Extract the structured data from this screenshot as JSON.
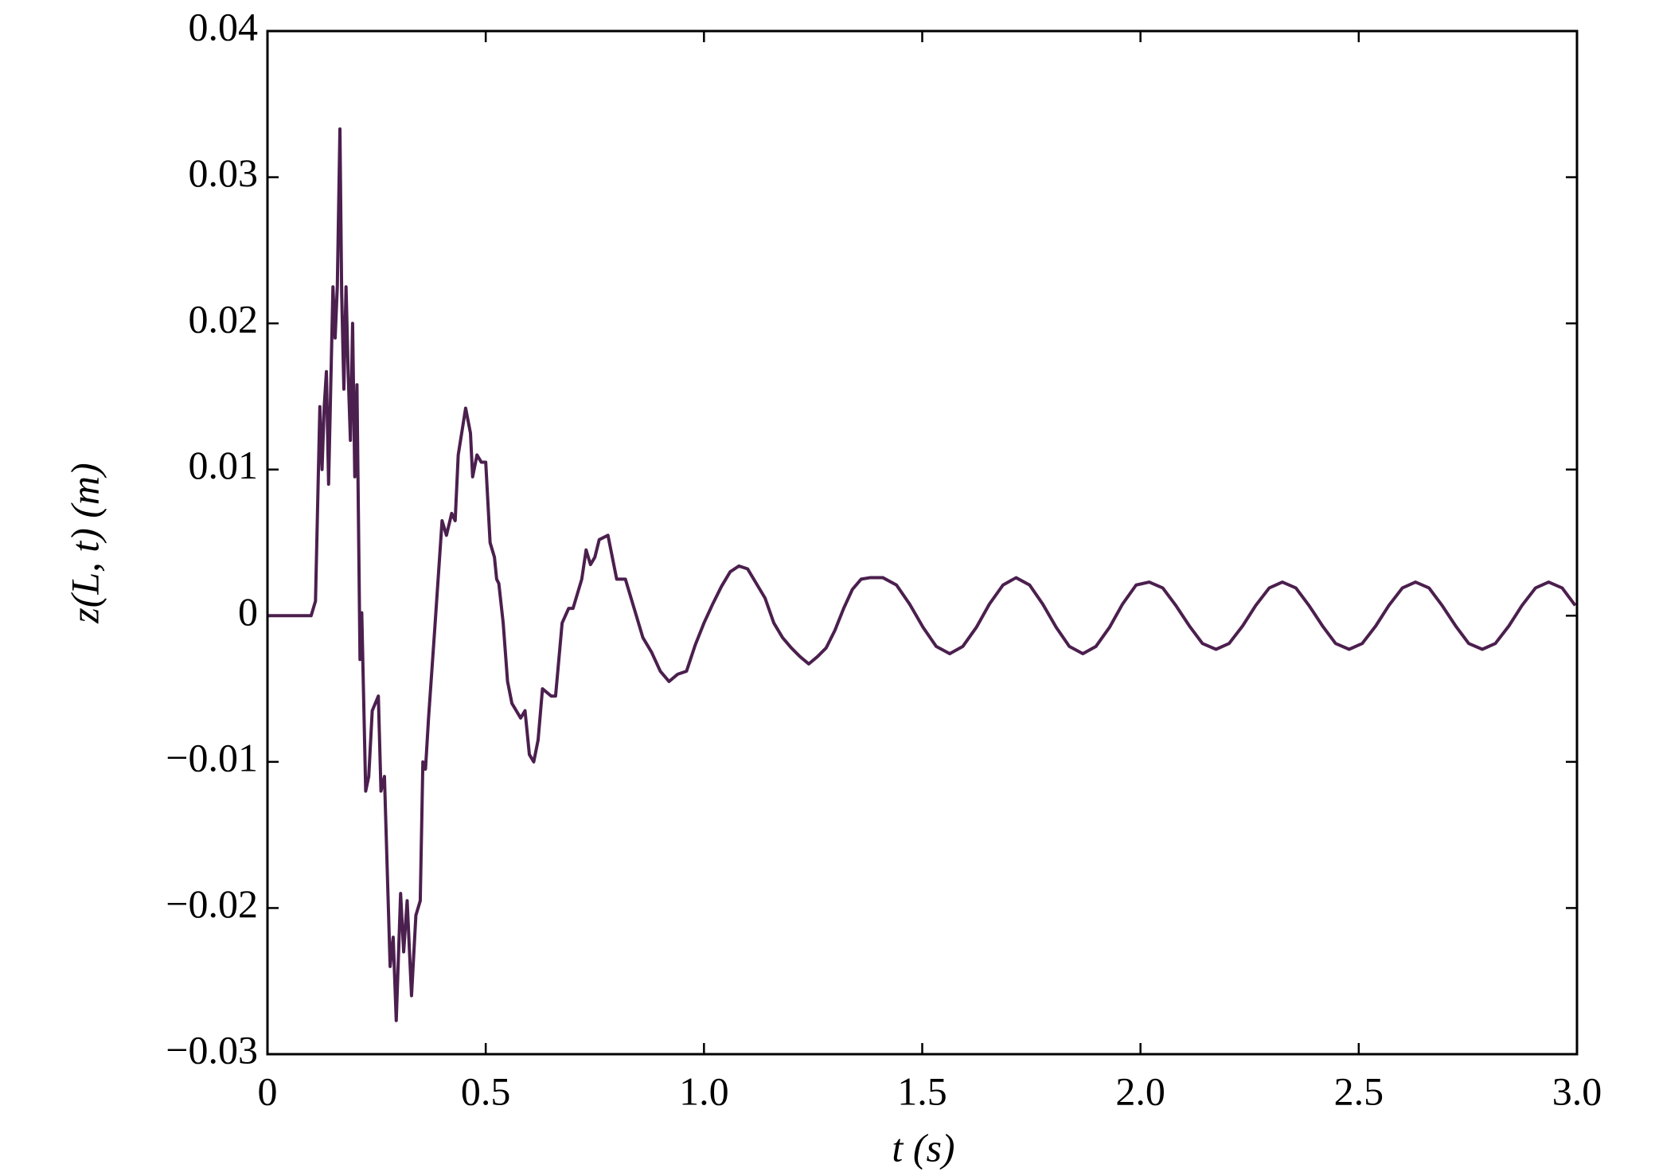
{
  "chart_data": {
    "type": "line",
    "xlabel": "t (s)",
    "ylabel": "z(L, t) (m)",
    "xlim": [
      0,
      3
    ],
    "ylim": [
      -0.03,
      0.04
    ],
    "xticks": [
      0,
      0.5,
      {
        "value": 1,
        "label": "1.0"
      },
      1.5,
      {
        "value": 2,
        "label": "2.0"
      },
      2.5,
      {
        "value": 3,
        "label": "3.0"
      }
    ],
    "yticks": [
      {
        "value": -0.03,
        "label": "−0.03"
      },
      {
        "value": -0.02,
        "label": "−0.02"
      },
      {
        "value": -0.01,
        "label": "−0.01"
      },
      0,
      0.01,
      0.02,
      0.03,
      0.04
    ],
    "x": [
      0,
      0.1,
      0.11,
      0.12,
      0.125,
      0.13,
      0.135,
      0.14,
      0.15,
      0.155,
      0.16,
      0.166,
      0.17,
      0.175,
      0.18,
      0.185,
      0.19,
      0.195,
      0.2,
      0.205,
      0.212,
      0.216,
      0.225,
      0.232,
      0.24,
      0.254,
      0.26,
      0.268,
      0.281,
      0.288,
      0.295,
      0.305,
      0.312,
      0.32,
      0.33,
      0.34,
      0.35,
      0.356,
      0.362,
      0.369,
      0.383,
      0.4,
      0.41,
      0.422,
      0.43,
      0.437,
      0.454,
      0.465,
      0.47,
      0.48,
      0.49,
      0.5,
      0.51,
      0.52,
      0.525,
      0.53,
      0.54,
      0.55,
      0.56,
      0.57,
      0.58,
      0.59,
      0.6,
      0.61,
      0.62,
      0.63,
      0.65,
      0.66,
      0.675,
      0.69,
      0.7,
      0.72,
      0.73,
      0.74,
      0.75,
      0.76,
      0.78,
      0.8,
      0.82,
      0.84,
      0.86,
      0.88,
      0.9,
      0.92,
      0.94,
      0.96,
      0.98,
      1.0,
      1.02,
      1.04,
      1.06,
      1.08,
      1.1,
      1.12,
      1.14,
      1.16,
      1.18,
      1.2,
      1.22,
      1.24,
      1.26,
      1.28,
      1.3,
      1.32,
      1.34,
      1.36,
      1.38,
      1.41,
      1.441,
      1.471,
      1.502,
      1.532,
      1.563,
      1.593,
      1.624,
      1.654,
      1.685,
      1.715,
      1.746,
      1.776,
      1.807,
      1.837,
      1.868,
      1.898,
      1.929,
      1.959,
      1.99,
      2.02,
      2.051,
      2.081,
      2.112,
      2.142,
      2.173,
      2.203,
      2.234,
      2.264,
      2.295,
      2.325,
      2.356,
      2.386,
      2.417,
      2.447,
      2.478,
      2.508,
      2.539,
      2.569,
      2.6,
      2.63,
      2.661,
      2.691,
      2.722,
      2.752,
      2.783,
      2.813,
      2.844,
      2.874,
      2.905,
      2.935,
      2.966,
      2.996
    ],
    "series": [
      {
        "color": "#4b1f4e",
        "values": [
          0,
          0,
          0.001,
          0.0143,
          0.01,
          0.0143,
          0.0167,
          0.009,
          0.0225,
          0.019,
          0.0225,
          0.0333,
          0.022,
          0.0155,
          0.0225,
          0.0165,
          0.012,
          0.02,
          0.0095,
          0.0158,
          -0.003,
          0.0002,
          -0.012,
          -0.011,
          -0.0065,
          -0.0055,
          -0.012,
          -0.011,
          -0.024,
          -0.022,
          -0.0277,
          -0.019,
          -0.023,
          -0.0195,
          -0.026,
          -0.0205,
          -0.0195,
          -0.01,
          -0.0105,
          -0.007,
          -0.001,
          0.0065,
          0.0055,
          0.007,
          0.0065,
          0.011,
          0.0142,
          0.0125,
          0.0095,
          0.011,
          0.0105,
          0.0105,
          0.005,
          0.004,
          0.0025,
          0.0022,
          -0.0005,
          -0.0045,
          -0.006,
          -0.0065,
          -0.007,
          -0.0065,
          -0.0095,
          -0.01,
          -0.0085,
          -0.005,
          -0.0055,
          -0.0055,
          -0.0005,
          0.0005,
          0.0005,
          0.0025,
          0.0045,
          0.0035,
          0.004,
          0.0052,
          0.0055,
          0.0025,
          0.0025,
          0.0005,
          -0.0015,
          -0.0025,
          -0.0038,
          -0.0045,
          -0.004,
          -0.0038,
          -0.002,
          -0.0005,
          0.0008,
          0.002,
          0.003,
          0.0034,
          0.0032,
          0.0022,
          0.0012,
          -0.0005,
          -0.0015,
          -0.0022,
          -0.0028,
          -0.0033,
          -0.0028,
          -0.0022,
          -0.001,
          0.0005,
          0.0018,
          0.0025,
          0.0026,
          0.0026,
          0.0021,
          0.0008,
          -0.0008,
          -0.0021,
          -0.0026,
          -0.0021,
          -0.0008,
          0.0008,
          0.0021,
          0.0026,
          0.0021,
          0.0008,
          -0.0008,
          -0.0021,
          -0.0026,
          -0.0021,
          -0.0008,
          0.0008,
          0.0021,
          0.0023,
          0.0019,
          0.0007,
          -0.0007,
          -0.0019,
          -0.0023,
          -0.0019,
          -0.0007,
          0.0007,
          0.0019,
          0.0023,
          0.0019,
          0.0007,
          -0.0007,
          -0.0019,
          -0.0023,
          -0.0019,
          -0.0007,
          0.0007,
          0.0019,
          0.0023,
          0.0019,
          0.0007,
          -0.0007,
          -0.0019,
          -0.0023,
          -0.0019,
          -0.0007,
          0.0007,
          0.0019,
          0.0023,
          0.0019,
          0.0007
        ]
      }
    ]
  }
}
